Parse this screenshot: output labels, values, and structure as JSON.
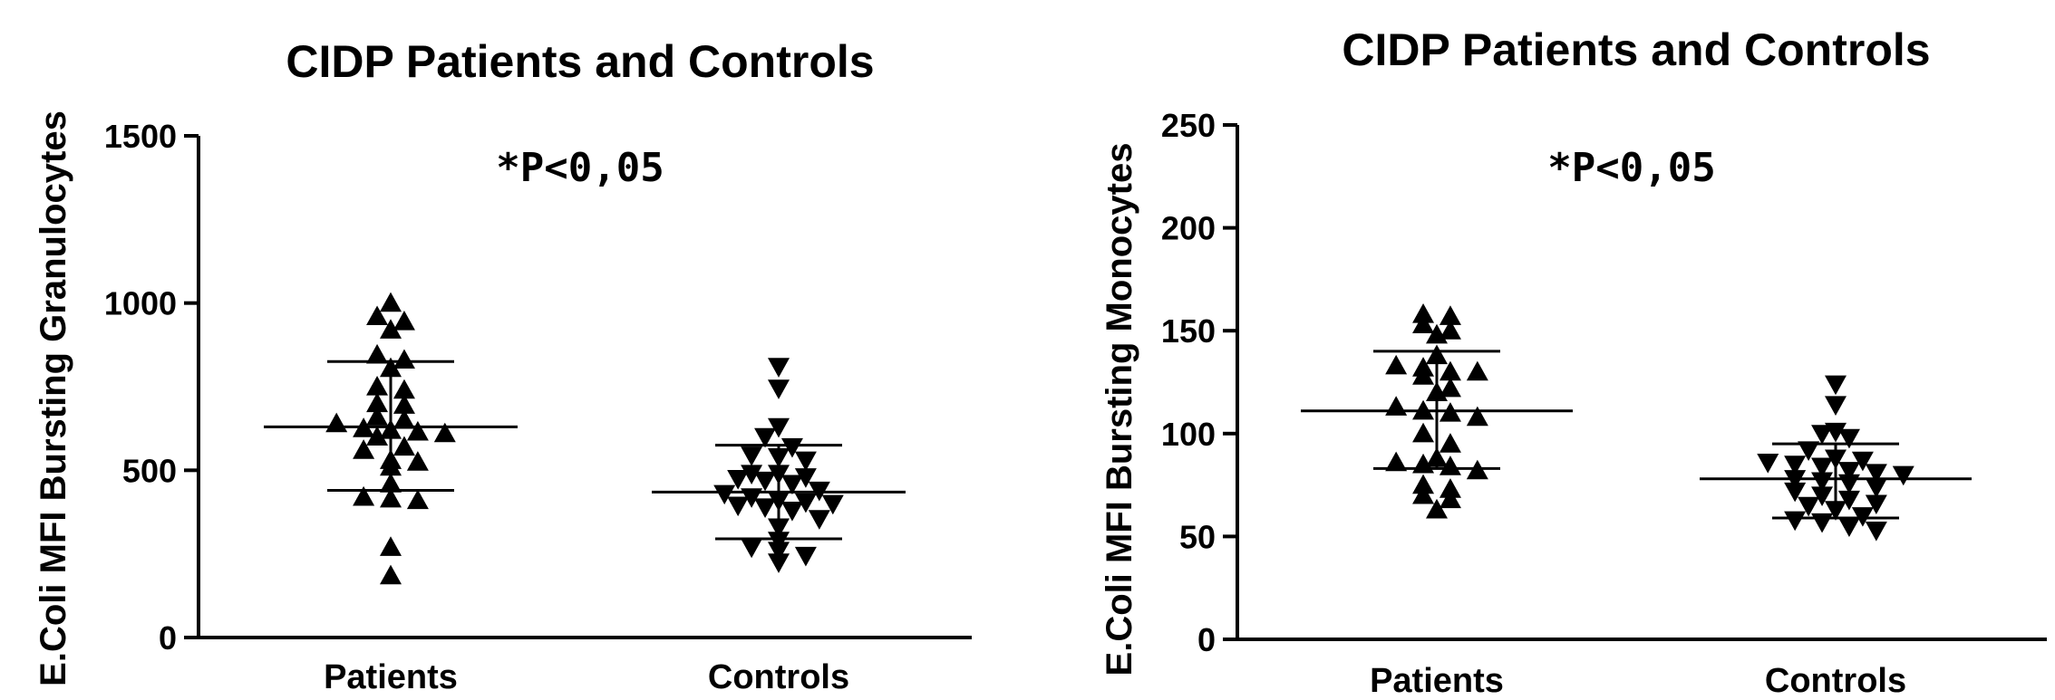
{
  "chart_data": [
    {
      "type": "scatter",
      "title": "CIDP Patients and Controls",
      "ylabel": "E.Coli MFI Bursting Granulocytes",
      "xlabel": "",
      "annotation": "*P<0,05",
      "categories": [
        "Patients",
        "Controls"
      ],
      "ylim": [
        0,
        1500
      ],
      "yticks": [
        0,
        500,
        1000,
        1500
      ],
      "series": [
        {
          "marker": "triangle-up",
          "values": [
            1000,
            960,
            945,
            920,
            845,
            830,
            805,
            750,
            740,
            700,
            695,
            660,
            650,
            640,
            625,
            620,
            615,
            610,
            600,
            570,
            560,
            530,
            525,
            510,
            460,
            420,
            415,
            410,
            270,
            185
          ],
          "mean": 630,
          "sd_high": 825,
          "sd_low": 440
        },
        {
          "marker": "triangle-down",
          "values": [
            810,
            745,
            630,
            600,
            570,
            545,
            540,
            530,
            490,
            490,
            480,
            475,
            470,
            460,
            440,
            430,
            420,
            410,
            405,
            400,
            395,
            390,
            380,
            355,
            330,
            290,
            270,
            260,
            245,
            225
          ],
          "mean": 435,
          "sd_high": 575,
          "sd_low": 295
        }
      ]
    },
    {
      "type": "scatter",
      "title": "CIDP Patients and Controls",
      "ylabel": "E.Coli MFI Bursting Monocytes",
      "xlabel": "",
      "annotation": "*P<0,05",
      "categories": [
        "Patients",
        "Controls"
      ],
      "ylim": [
        0,
        250
      ],
      "yticks": [
        0,
        50,
        100,
        150,
        200,
        250
      ],
      "series": [
        {
          "marker": "triangle-up",
          "values": [
            158,
            157,
            153,
            150,
            148,
            138,
            133,
            132,
            130,
            130,
            128,
            122,
            120,
            113,
            111,
            110,
            108,
            100,
            95,
            88,
            86,
            85,
            84,
            82,
            75,
            73,
            70,
            68,
            63
          ],
          "mean": 111,
          "sd_high": 140,
          "sd_low": 83
        },
        {
          "marker": "triangle-down",
          "values": [
            124,
            114,
            101,
            100,
            98,
            92,
            88,
            87,
            86,
            85,
            84,
            82,
            81,
            80,
            78,
            77,
            76,
            74,
            72,
            70,
            68,
            66,
            65,
            63,
            60,
            58,
            57,
            55,
            53
          ],
          "mean": 78,
          "sd_high": 95,
          "sd_low": 59
        }
      ]
    }
  ]
}
